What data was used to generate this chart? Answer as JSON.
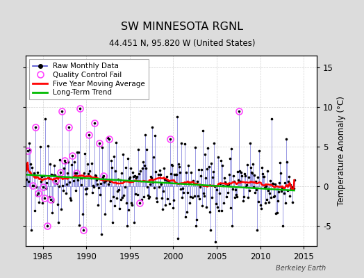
{
  "title": "SW MINNESOTA RGNL",
  "subtitle": "44.451 N, 95.820 W (United States)",
  "ylabel": "Temperature Anomaly (°C)",
  "credit": "Berkeley Earth",
  "xlim": [
    1983.0,
    2016.5
  ],
  "ylim": [
    -7.5,
    16.5
  ],
  "yticks": [
    -5,
    0,
    5,
    10,
    15
  ],
  "xticks": [
    1985,
    1990,
    1995,
    2000,
    2005,
    2010,
    2015
  ],
  "bg_color": "#dcdcdc",
  "plot_bg_color": "#ffffff",
  "raw_line_color": "#4444cc",
  "raw_dot_color": "#000000",
  "qc_circle_color": "#ff44ff",
  "ma_color": "#ff0000",
  "trend_color": "#00bb00",
  "seed": 42,
  "n_months": 372,
  "start_year": 1983.0
}
